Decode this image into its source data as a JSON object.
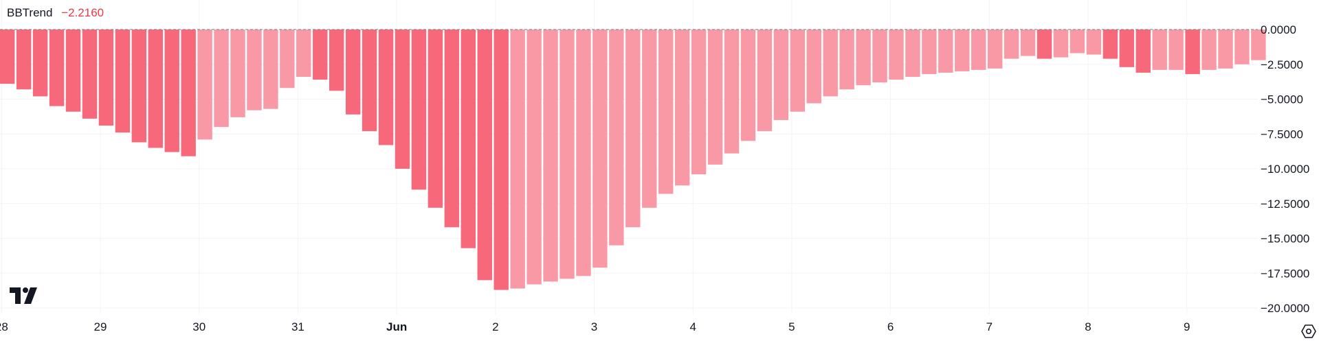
{
  "indicator": {
    "name": "BBTrend",
    "value": "−2.2160",
    "value_color": "#f23645"
  },
  "colors": {
    "strong_negative": "#f7687a",
    "weak_negative": "#f999a6",
    "grid": "#f0f3fa",
    "zero_line": "#787b86",
    "axis_text": "#131722"
  },
  "icons": {
    "logo": "tradingview-logo-icon",
    "settings": "settings-gear-icon"
  },
  "chart_data": {
    "type": "bar",
    "title": "BBTrend",
    "ylim": [
      -20.5,
      0
    ],
    "y_ticks": [
      "0.0000",
      "−2.5000",
      "−5.0000",
      "−7.5000",
      "−10.0000",
      "−12.5000",
      "−15.0000",
      "−17.5000",
      "−20.0000"
    ],
    "y_tick_values": [
      0,
      -2.5,
      -5,
      -7.5,
      -10,
      -12.5,
      -15,
      -17.5,
      -20
    ],
    "x_ticks": [
      {
        "label": "28",
        "index": -0.35,
        "bold": false
      },
      {
        "label": "29",
        "index": 5.65,
        "bold": false
      },
      {
        "label": "30",
        "index": 11.65,
        "bold": false
      },
      {
        "label": "31",
        "index": 17.65,
        "bold": false
      },
      {
        "label": "Jun",
        "index": 23.65,
        "bold": true
      },
      {
        "label": "2",
        "index": 29.65,
        "bold": false
      },
      {
        "label": "3",
        "index": 35.65,
        "bold": false
      },
      {
        "label": "4",
        "index": 41.65,
        "bold": false
      },
      {
        "label": "5",
        "index": 47.65,
        "bold": false
      },
      {
        "label": "6",
        "index": 53.65,
        "bold": false
      },
      {
        "label": "7",
        "index": 59.65,
        "bold": false
      },
      {
        "label": "8",
        "index": 65.65,
        "bold": false
      },
      {
        "label": "9",
        "index": 71.65,
        "bold": false
      }
    ],
    "values": [
      -3.9,
      -4.3,
      -4.8,
      -5.5,
      -5.9,
      -6.4,
      -6.9,
      -7.4,
      -8.1,
      -8.5,
      -8.8,
      -9.1,
      -7.9,
      -7.0,
      -6.3,
      -5.8,
      -5.7,
      -4.2,
      -3.4,
      -3.6,
      -4.4,
      -6.1,
      -7.3,
      -8.3,
      -10.0,
      -11.5,
      -12.8,
      -14.2,
      -15.7,
      -18.0,
      -18.7,
      -18.6,
      -18.3,
      -18.1,
      -17.9,
      -17.7,
      -17.1,
      -15.5,
      -14.2,
      -12.8,
      -11.8,
      -11.2,
      -10.4,
      -9.7,
      -8.9,
      -8.0,
      -7.3,
      -6.5,
      -5.9,
      -5.3,
      -4.8,
      -4.3,
      -4.0,
      -3.8,
      -3.6,
      -3.4,
      -3.2,
      -3.1,
      -3.0,
      -2.9,
      -2.8,
      -2.1,
      -1.9,
      -2.1,
      -2.0,
      -1.7,
      -1.8,
      -2.1,
      -2.7,
      -3.1,
      -2.9,
      -2.9,
      -3.2,
      -2.9,
      -2.8,
      -2.5,
      -2.2
    ],
    "strength": [
      "strong",
      "strong",
      "strong",
      "strong",
      "strong",
      "strong",
      "strong",
      "strong",
      "strong",
      "strong",
      "strong",
      "strong",
      "weak",
      "weak",
      "weak",
      "weak",
      "weak",
      "weak",
      "weak",
      "strong",
      "strong",
      "strong",
      "strong",
      "strong",
      "strong",
      "strong",
      "strong",
      "strong",
      "strong",
      "strong",
      "strong",
      "weak",
      "weak",
      "weak",
      "weak",
      "weak",
      "weak",
      "weak",
      "weak",
      "weak",
      "weak",
      "weak",
      "weak",
      "weak",
      "weak",
      "weak",
      "weak",
      "weak",
      "weak",
      "weak",
      "weak",
      "weak",
      "weak",
      "weak",
      "weak",
      "weak",
      "weak",
      "weak",
      "weak",
      "weak",
      "weak",
      "weak",
      "weak",
      "strong",
      "weak",
      "weak",
      "weak",
      "strong",
      "strong",
      "strong",
      "weak",
      "weak",
      "strong",
      "weak",
      "weak",
      "weak",
      "weak"
    ],
    "zero_line": "dashed",
    "grid": true
  }
}
